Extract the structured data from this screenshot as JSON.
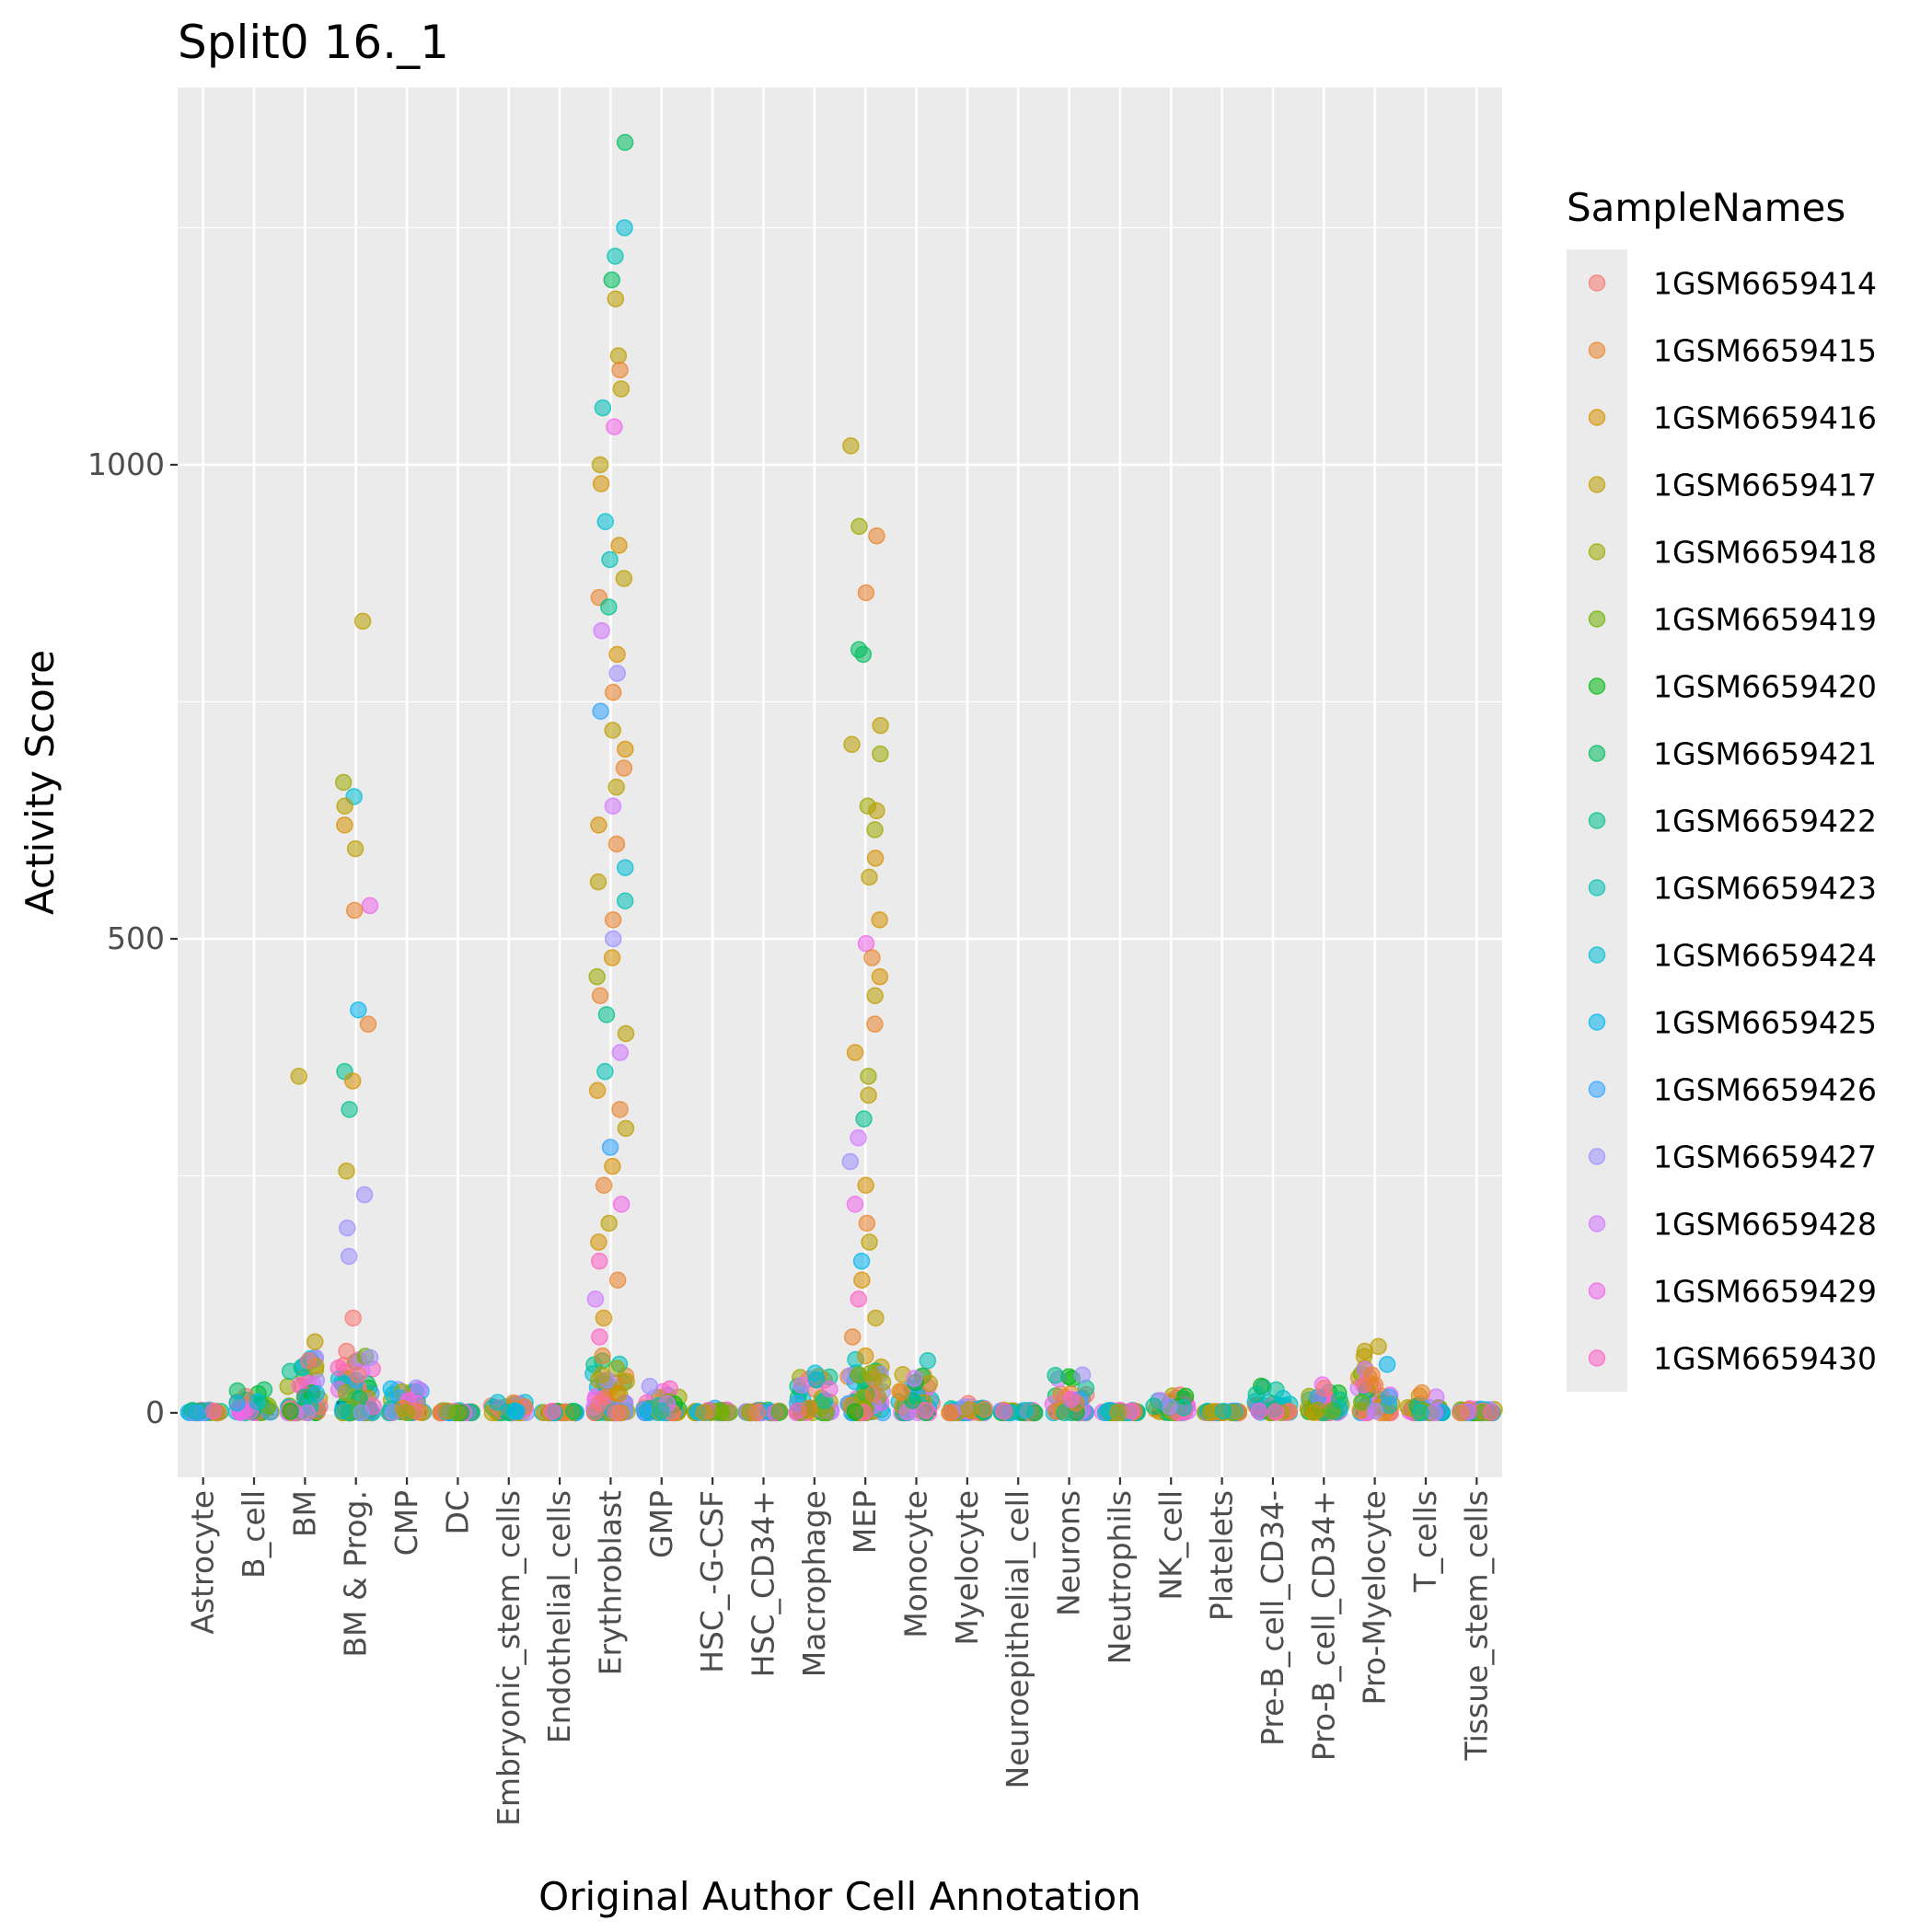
{
  "chart_data": {
    "type": "scatter",
    "title": "Split0 16._1",
    "xlabel": "Original Author Cell Annotation",
    "ylabel": "Activity Score",
    "ylim": [
      -68,
      1398
    ],
    "yticks": [
      0,
      500,
      1000
    ],
    "grid": true,
    "legend_position": "right",
    "legend_title": "SampleNames",
    "categories": [
      "Astrocyte",
      "B_cell",
      "BM",
      "BM & Prog.",
      "CMP",
      "DC",
      "Embryonic_stem_cells",
      "Endothelial_cells",
      "Erythroblast",
      "GMP",
      "HSC_-G-CSF",
      "HSC_CD34+",
      "Macrophage",
      "MEP",
      "Monocyte",
      "Myelocyte",
      "Neuroepithelial_cell",
      "Neurons",
      "Neutrophils",
      "NK_cell",
      "Platelets",
      "Pre-B_cell_CD34-",
      "Pro-B_cell_CD34+",
      "Pro-Myelocyte",
      "T_cells",
      "Tissue_stem_cells"
    ],
    "series": [
      {
        "name": "1GSM6659414",
        "color": "#F8766D"
      },
      {
        "name": "1GSM6659415",
        "color": "#E9842C"
      },
      {
        "name": "1GSM6659416",
        "color": "#D69100"
      },
      {
        "name": "1GSM6659417",
        "color": "#BC9D00"
      },
      {
        "name": "1GSM6659418",
        "color": "#9CA700"
      },
      {
        "name": "1GSM6659419",
        "color": "#6FB000"
      },
      {
        "name": "1GSM6659420",
        "color": "#00B813"
      },
      {
        "name": "1GSM6659421",
        "color": "#00BD61"
      },
      {
        "name": "1GSM6659422",
        "color": "#00C08E"
      },
      {
        "name": "1GSM6659423",
        "color": "#00C0B4"
      },
      {
        "name": "1GSM6659424",
        "color": "#00BDD4"
      },
      {
        "name": "1GSM6659425",
        "color": "#00B5EE"
      },
      {
        "name": "1GSM6659426",
        "color": "#2FA4FF"
      },
      {
        "name": "1GSM6659427",
        "color": "#9D8FFF"
      },
      {
        "name": "1GSM6659428",
        "color": "#D277FF"
      },
      {
        "name": "1GSM6659429",
        "color": "#F066EA"
      },
      {
        "name": "1GSM6659430",
        "color": "#FF61C7"
      }
    ],
    "category_ranges": [
      {
        "category": "Astrocyte",
        "median": 0,
        "max": 3
      },
      {
        "category": "B_cell",
        "median": 0,
        "max": 25
      },
      {
        "category": "BM",
        "median": 5,
        "max": 355
      },
      {
        "category": "BM & Prog.",
        "median": 10,
        "max": 835
      },
      {
        "category": "CMP",
        "median": 0,
        "max": 32
      },
      {
        "category": "DC",
        "median": 0,
        "max": 3
      },
      {
        "category": "Embryonic_stem_cells",
        "median": 10,
        "max": 12
      },
      {
        "category": "Endothelial_cells",
        "median": 0,
        "max": 2
      },
      {
        "category": "Erythroblast",
        "median": 5,
        "max": 1340
      },
      {
        "category": "GMP",
        "median": 0,
        "max": 28
      },
      {
        "category": "HSC_-G-CSF",
        "median": 0,
        "max": 5
      },
      {
        "category": "HSC_CD34+",
        "median": 0,
        "max": 3
      },
      {
        "category": "Macrophage",
        "median": 0,
        "max": 42
      },
      {
        "category": "MEP",
        "median": 5,
        "max": 1020
      },
      {
        "category": "Monocyte",
        "median": 0,
        "max": 55
      },
      {
        "category": "Myelocyte",
        "median": 5,
        "max": 10
      },
      {
        "category": "Neuroepithelial_cell",
        "median": 0,
        "max": 3
      },
      {
        "category": "Neurons",
        "median": 0,
        "max": 40
      },
      {
        "category": "Neutrophils",
        "median": 0,
        "max": 3
      },
      {
        "category": "NK_cell",
        "median": 0,
        "max": 20
      },
      {
        "category": "Platelets",
        "median": 0,
        "max": 2
      },
      {
        "category": "Pre-B_cell_CD34-",
        "median": 0,
        "max": 30
      },
      {
        "category": "Pro-B_cell_CD34+",
        "median": 0,
        "max": 32
      },
      {
        "category": "Pro-Myelocyte",
        "median": 0,
        "max": 70
      },
      {
        "category": "T_cells",
        "median": 0,
        "max": 25
      },
      {
        "category": "Tissue_stem_cells",
        "median": 0,
        "max": 5
      }
    ],
    "outliers": [
      {
        "category": "BM",
        "series": 3,
        "y": 355
      },
      {
        "category": "BM",
        "series": 3,
        "y": 75
      },
      {
        "category": "BM",
        "series": 0,
        "y": 55
      },
      {
        "category": "BM & Prog.",
        "series": 3,
        "y": 835
      },
      {
        "category": "BM & Prog.",
        "series": 4,
        "y": 665
      },
      {
        "category": "BM & Prog.",
        "series": 10,
        "y": 650
      },
      {
        "category": "BM & Prog.",
        "series": 3,
        "y": 640
      },
      {
        "category": "BM & Prog.",
        "series": 2,
        "y": 620
      },
      {
        "category": "BM & Prog.",
        "series": 3,
        "y": 595
      },
      {
        "category": "BM & Prog.",
        "series": 15,
        "y": 535
      },
      {
        "category": "BM & Prog.",
        "series": 1,
        "y": 530
      },
      {
        "category": "BM & Prog.",
        "series": 11,
        "y": 425
      },
      {
        "category": "BM & Prog.",
        "series": 1,
        "y": 410
      },
      {
        "category": "BM & Prog.",
        "series": 8,
        "y": 360
      },
      {
        "category": "BM & Prog.",
        "series": 2,
        "y": 350
      },
      {
        "category": "BM & Prog.",
        "series": 8,
        "y": 320
      },
      {
        "category": "BM & Prog.",
        "series": 3,
        "y": 255
      },
      {
        "category": "BM & Prog.",
        "series": 13,
        "y": 230
      },
      {
        "category": "BM & Prog.",
        "series": 13,
        "y": 195
      },
      {
        "category": "BM & Prog.",
        "series": 13,
        "y": 165
      },
      {
        "category": "BM & Prog.",
        "series": 0,
        "y": 100
      },
      {
        "category": "BM & Prog.",
        "series": 0,
        "y": 65
      },
      {
        "category": "BM & Prog.",
        "series": 0,
        "y": 40
      },
      {
        "category": "Erythroblast",
        "series": 7,
        "y": 1340
      },
      {
        "category": "Erythroblast",
        "series": 10,
        "y": 1250
      },
      {
        "category": "Erythroblast",
        "series": 9,
        "y": 1220
      },
      {
        "category": "Erythroblast",
        "series": 7,
        "y": 1195
      },
      {
        "category": "Erythroblast",
        "series": 3,
        "y": 1175
      },
      {
        "category": "Erythroblast",
        "series": 3,
        "y": 1115
      },
      {
        "category": "Erythroblast",
        "series": 1,
        "y": 1100
      },
      {
        "category": "Erythroblast",
        "series": 3,
        "y": 1080
      },
      {
        "category": "Erythroblast",
        "series": 9,
        "y": 1060
      },
      {
        "category": "Erythroblast",
        "series": 15,
        "y": 1040
      },
      {
        "category": "Erythroblast",
        "series": 3,
        "y": 1000
      },
      {
        "category": "Erythroblast",
        "series": 2,
        "y": 980
      },
      {
        "category": "Erythroblast",
        "series": 10,
        "y": 940
      },
      {
        "category": "Erythroblast",
        "series": 2,
        "y": 915
      },
      {
        "category": "Erythroblast",
        "series": 9,
        "y": 900
      },
      {
        "category": "Erythroblast",
        "series": 3,
        "y": 880
      },
      {
        "category": "Erythroblast",
        "series": 1,
        "y": 860
      },
      {
        "category": "Erythroblast",
        "series": 8,
        "y": 850
      },
      {
        "category": "Erythroblast",
        "series": 14,
        "y": 825
      },
      {
        "category": "Erythroblast",
        "series": 2,
        "y": 800
      },
      {
        "category": "Erythroblast",
        "series": 13,
        "y": 780
      },
      {
        "category": "Erythroblast",
        "series": 1,
        "y": 760
      },
      {
        "category": "Erythroblast",
        "series": 12,
        "y": 740
      },
      {
        "category": "Erythroblast",
        "series": 3,
        "y": 720
      },
      {
        "category": "Erythroblast",
        "series": 2,
        "y": 700
      },
      {
        "category": "Erythroblast",
        "series": 1,
        "y": 680
      },
      {
        "category": "Erythroblast",
        "series": 3,
        "y": 660
      },
      {
        "category": "Erythroblast",
        "series": 14,
        "y": 640
      },
      {
        "category": "Erythroblast",
        "series": 2,
        "y": 620
      },
      {
        "category": "Erythroblast",
        "series": 1,
        "y": 600
      },
      {
        "category": "Erythroblast",
        "series": 10,
        "y": 575
      },
      {
        "category": "Erythroblast",
        "series": 3,
        "y": 560
      },
      {
        "category": "Erythroblast",
        "series": 9,
        "y": 540
      },
      {
        "category": "Erythroblast",
        "series": 1,
        "y": 520
      },
      {
        "category": "Erythroblast",
        "series": 13,
        "y": 500
      },
      {
        "category": "Erythroblast",
        "series": 2,
        "y": 480
      },
      {
        "category": "Erythroblast",
        "series": 4,
        "y": 460
      },
      {
        "category": "Erythroblast",
        "series": 1,
        "y": 440
      },
      {
        "category": "Erythroblast",
        "series": 8,
        "y": 420
      },
      {
        "category": "Erythroblast",
        "series": 3,
        "y": 400
      },
      {
        "category": "Erythroblast",
        "series": 14,
        "y": 380
      },
      {
        "category": "Erythroblast",
        "series": 9,
        "y": 360
      },
      {
        "category": "Erythroblast",
        "series": 2,
        "y": 340
      },
      {
        "category": "Erythroblast",
        "series": 1,
        "y": 320
      },
      {
        "category": "Erythroblast",
        "series": 3,
        "y": 300
      },
      {
        "category": "Erythroblast",
        "series": 12,
        "y": 280
      },
      {
        "category": "Erythroblast",
        "series": 2,
        "y": 260
      },
      {
        "category": "Erythroblast",
        "series": 1,
        "y": 240
      },
      {
        "category": "Erythroblast",
        "series": 15,
        "y": 220
      },
      {
        "category": "Erythroblast",
        "series": 3,
        "y": 200
      },
      {
        "category": "Erythroblast",
        "series": 2,
        "y": 180
      },
      {
        "category": "Erythroblast",
        "series": 16,
        "y": 160
      },
      {
        "category": "Erythroblast",
        "series": 1,
        "y": 140
      },
      {
        "category": "Erythroblast",
        "series": 14,
        "y": 120
      },
      {
        "category": "Erythroblast",
        "series": 2,
        "y": 100
      },
      {
        "category": "Erythroblast",
        "series": 16,
        "y": 80
      },
      {
        "category": "Erythroblast",
        "series": 1,
        "y": 60
      },
      {
        "category": "Erythroblast",
        "series": 3,
        "y": 40
      },
      {
        "category": "Erythroblast",
        "series": 2,
        "y": 20
      },
      {
        "category": "MEP",
        "series": 3,
        "y": 1020
      },
      {
        "category": "MEP",
        "series": 4,
        "y": 935
      },
      {
        "category": "MEP",
        "series": 1,
        "y": 925
      },
      {
        "category": "MEP",
        "series": 1,
        "y": 865
      },
      {
        "category": "MEP",
        "series": 7,
        "y": 805
      },
      {
        "category": "MEP",
        "series": 7,
        "y": 800
      },
      {
        "category": "MEP",
        "series": 3,
        "y": 725
      },
      {
        "category": "MEP",
        "series": 3,
        "y": 705
      },
      {
        "category": "MEP",
        "series": 4,
        "y": 695
      },
      {
        "category": "MEP",
        "series": 4,
        "y": 640
      },
      {
        "category": "MEP",
        "series": 3,
        "y": 635
      },
      {
        "category": "MEP",
        "series": 4,
        "y": 615
      },
      {
        "category": "MEP",
        "series": 2,
        "y": 585
      },
      {
        "category": "MEP",
        "series": 3,
        "y": 565
      },
      {
        "category": "MEP",
        "series": 2,
        "y": 520
      },
      {
        "category": "MEP",
        "series": 15,
        "y": 495
      },
      {
        "category": "MEP",
        "series": 1,
        "y": 480
      },
      {
        "category": "MEP",
        "series": 2,
        "y": 460
      },
      {
        "category": "MEP",
        "series": 3,
        "y": 440
      },
      {
        "category": "MEP",
        "series": 1,
        "y": 410
      },
      {
        "category": "MEP",
        "series": 2,
        "y": 380
      },
      {
        "category": "MEP",
        "series": 4,
        "y": 355
      },
      {
        "category": "MEP",
        "series": 3,
        "y": 335
      },
      {
        "category": "MEP",
        "series": 8,
        "y": 310
      },
      {
        "category": "MEP",
        "series": 14,
        "y": 290
      },
      {
        "category": "MEP",
        "series": 13,
        "y": 265
      },
      {
        "category": "MEP",
        "series": 2,
        "y": 240
      },
      {
        "category": "MEP",
        "series": 15,
        "y": 220
      },
      {
        "category": "MEP",
        "series": 1,
        "y": 200
      },
      {
        "category": "MEP",
        "series": 3,
        "y": 180
      },
      {
        "category": "MEP",
        "series": 11,
        "y": 160
      },
      {
        "category": "MEP",
        "series": 2,
        "y": 140
      },
      {
        "category": "MEP",
        "series": 16,
        "y": 120
      },
      {
        "category": "MEP",
        "series": 3,
        "y": 100
      },
      {
        "category": "MEP",
        "series": 1,
        "y": 80
      },
      {
        "category": "MEP",
        "series": 2,
        "y": 60
      },
      {
        "category": "MEP",
        "series": 4,
        "y": 40
      },
      {
        "category": "MEP",
        "series": 1,
        "y": 20
      },
      {
        "category": "Macrophage",
        "series": 10,
        "y": 42
      },
      {
        "category": "Macrophage",
        "series": 15,
        "y": 25
      },
      {
        "category": "Monocyte",
        "series": 9,
        "y": 55
      },
      {
        "category": "Neurons",
        "series": 13,
        "y": 40
      },
      {
        "category": "Pro-Myelocyte",
        "series": 3,
        "y": 70
      },
      {
        "category": "Pro-Myelocyte",
        "series": 3,
        "y": 65
      },
      {
        "category": "Pro-Myelocyte",
        "series": 1,
        "y": 40
      }
    ]
  }
}
